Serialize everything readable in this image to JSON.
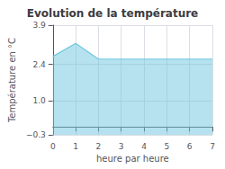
{
  "chart_data": {
    "type": "area",
    "title": "Evolution de la température",
    "xlabel": "heure par heure",
    "ylabel": "Température en °C",
    "x": [
      0,
      1,
      2,
      3,
      4,
      5,
      6,
      7
    ],
    "values": [
      2.7,
      3.2,
      2.6,
      2.6,
      2.6,
      2.6,
      2.6,
      2.6
    ],
    "color": "#6ec6e0",
    "xlim": [
      0,
      7
    ],
    "xticks": [
      0,
      1,
      2,
      3,
      4,
      5,
      6,
      7
    ],
    "ylim": [
      -0.3,
      3.9
    ],
    "yticks": [
      {
        "value": -0.3,
        "label": "−0.3"
      },
      {
        "value": 1.0,
        "label": "1.0"
      },
      2.4,
      3.9
    ],
    "grid": true
  }
}
